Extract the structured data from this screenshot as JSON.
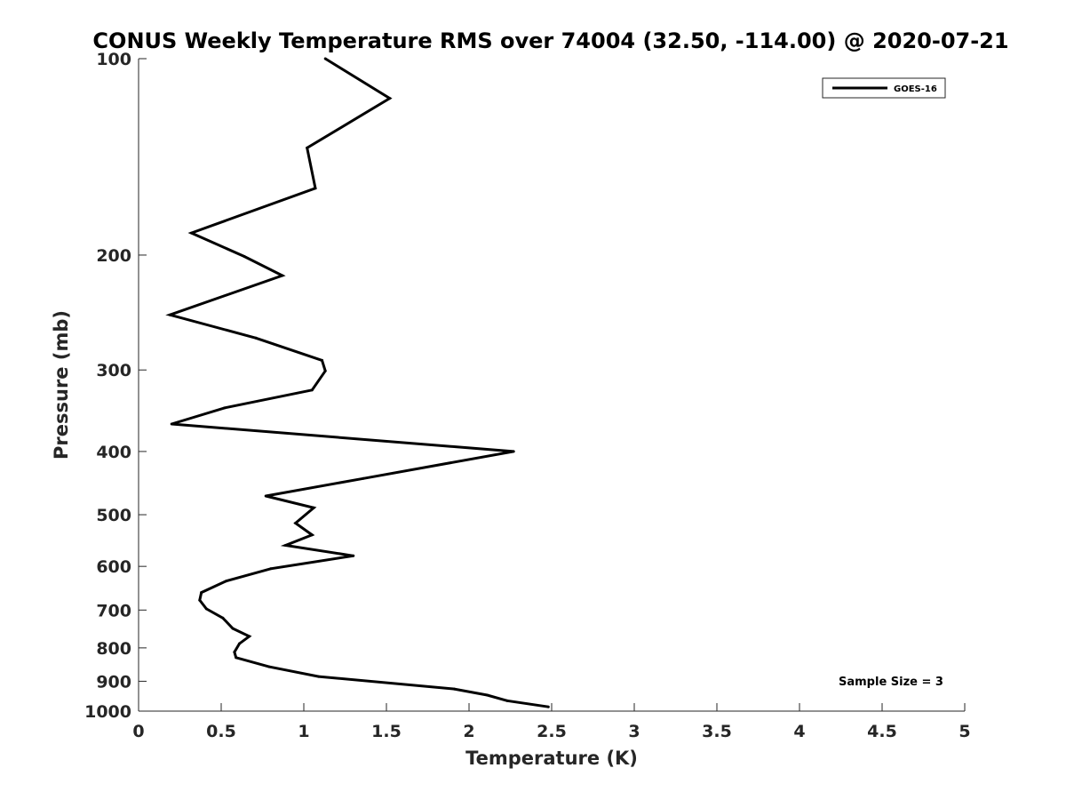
{
  "chart_data": {
    "type": "line",
    "title": "CONUS Weekly Temperature RMS over 74004 (32.50, -114.00) @ 2020-07-21",
    "xlabel": "Temperature (K)",
    "ylabel": "Pressure (mb)",
    "xlim": [
      0,
      5
    ],
    "ylim": [
      100,
      1000
    ],
    "y_scale": "log",
    "y_reversed": true,
    "grid": false,
    "legend_position": "top-right",
    "x_ticks": [
      {
        "value": 0,
        "label": "0"
      },
      {
        "value": 0.5,
        "label": "0.5"
      },
      {
        "value": 1,
        "label": "1"
      },
      {
        "value": 1.5,
        "label": "1.5"
      },
      {
        "value": 2,
        "label": "2"
      },
      {
        "value": 2.5,
        "label": "2.5"
      },
      {
        "value": 3,
        "label": "3"
      },
      {
        "value": 3.5,
        "label": "3.5"
      },
      {
        "value": 4,
        "label": "4"
      },
      {
        "value": 4.5,
        "label": "4.5"
      },
      {
        "value": 5,
        "label": "5"
      }
    ],
    "y_ticks": [
      {
        "value": 100,
        "label": "100"
      },
      {
        "value": 200,
        "label": "200"
      },
      {
        "value": 300,
        "label": "300"
      },
      {
        "value": 400,
        "label": "400"
      },
      {
        "value": 500,
        "label": "500"
      },
      {
        "value": 600,
        "label": "600"
      },
      {
        "value": 700,
        "label": "700"
      },
      {
        "value": 800,
        "label": "800"
      },
      {
        "value": 900,
        "label": "900"
      },
      {
        "value": 1000,
        "label": "1000"
      }
    ],
    "annotation": "Sample Size = 3",
    "series": [
      {
        "name": "GOES-16",
        "color": "#000000",
        "points": [
          {
            "x": 1.13,
            "y": 100
          },
          {
            "x": 1.52,
            "y": 115
          },
          {
            "x": 1.02,
            "y": 137
          },
          {
            "x": 1.07,
            "y": 158
          },
          {
            "x": 0.32,
            "y": 185
          },
          {
            "x": 0.64,
            "y": 201
          },
          {
            "x": 0.87,
            "y": 215
          },
          {
            "x": 0.19,
            "y": 247
          },
          {
            "x": 0.71,
            "y": 268
          },
          {
            "x": 1.11,
            "y": 290
          },
          {
            "x": 1.13,
            "y": 301
          },
          {
            "x": 1.05,
            "y": 322
          },
          {
            "x": 0.52,
            "y": 343
          },
          {
            "x": 0.2,
            "y": 363
          },
          {
            "x": 2.27,
            "y": 400
          },
          {
            "x": 1.36,
            "y": 440
          },
          {
            "x": 0.77,
            "y": 468
          },
          {
            "x": 1.06,
            "y": 488
          },
          {
            "x": 0.95,
            "y": 515
          },
          {
            "x": 1.05,
            "y": 537
          },
          {
            "x": 0.89,
            "y": 557
          },
          {
            "x": 1.3,
            "y": 578
          },
          {
            "x": 0.8,
            "y": 605
          },
          {
            "x": 0.53,
            "y": 632
          },
          {
            "x": 0.38,
            "y": 658
          },
          {
            "x": 0.37,
            "y": 676
          },
          {
            "x": 0.41,
            "y": 697
          },
          {
            "x": 0.51,
            "y": 720
          },
          {
            "x": 0.57,
            "y": 747
          },
          {
            "x": 0.67,
            "y": 768
          },
          {
            "x": 0.61,
            "y": 788
          },
          {
            "x": 0.58,
            "y": 812
          },
          {
            "x": 0.59,
            "y": 828
          },
          {
            "x": 0.79,
            "y": 855
          },
          {
            "x": 1.09,
            "y": 885
          },
          {
            "x": 1.91,
            "y": 925
          },
          {
            "x": 2.11,
            "y": 945
          },
          {
            "x": 2.23,
            "y": 964
          },
          {
            "x": 2.48,
            "y": 985
          }
        ]
      }
    ]
  }
}
